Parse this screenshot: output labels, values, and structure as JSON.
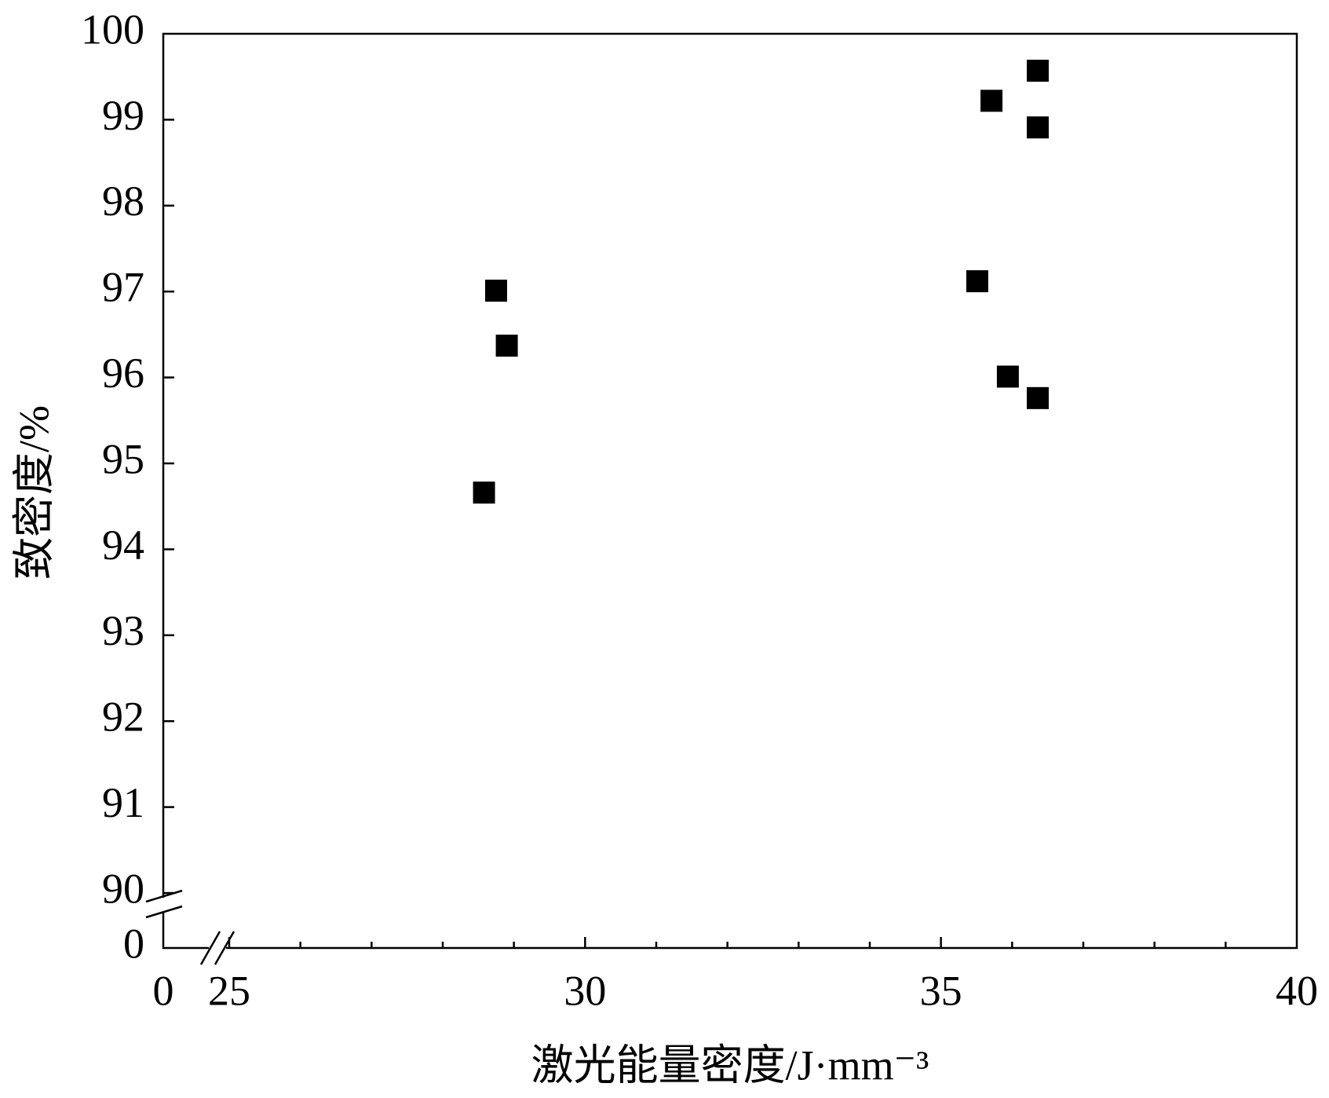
{
  "chart_data": {
    "type": "scatter",
    "xlabel": "激光能量密度/J·mm⁻³",
    "ylabel": "致密度/%",
    "x": [
      28.58,
      28.75,
      28.9,
      35.51,
      35.71,
      35.94,
      36.36,
      36.36,
      36.36
    ],
    "values": [
      94.66,
      97.01,
      96.37,
      97.12,
      99.22,
      96.01,
      99.57,
      98.91,
      95.76
    ],
    "color": "#000000",
    "xlim": [
      0,
      40
    ],
    "xbreak": [
      0,
      25
    ],
    "xticks": [
      0,
      25,
      30,
      35,
      40
    ],
    "xminorticks": [
      26,
      27,
      28,
      29,
      31,
      32,
      33,
      34,
      36,
      37,
      38,
      39
    ],
    "ylim": [
      0,
      100
    ],
    "ybreak": [
      0,
      90
    ],
    "yticks": [
      0,
      90,
      91,
      92,
      93,
      94,
      95,
      96,
      97,
      98,
      99,
      100
    ]
  }
}
